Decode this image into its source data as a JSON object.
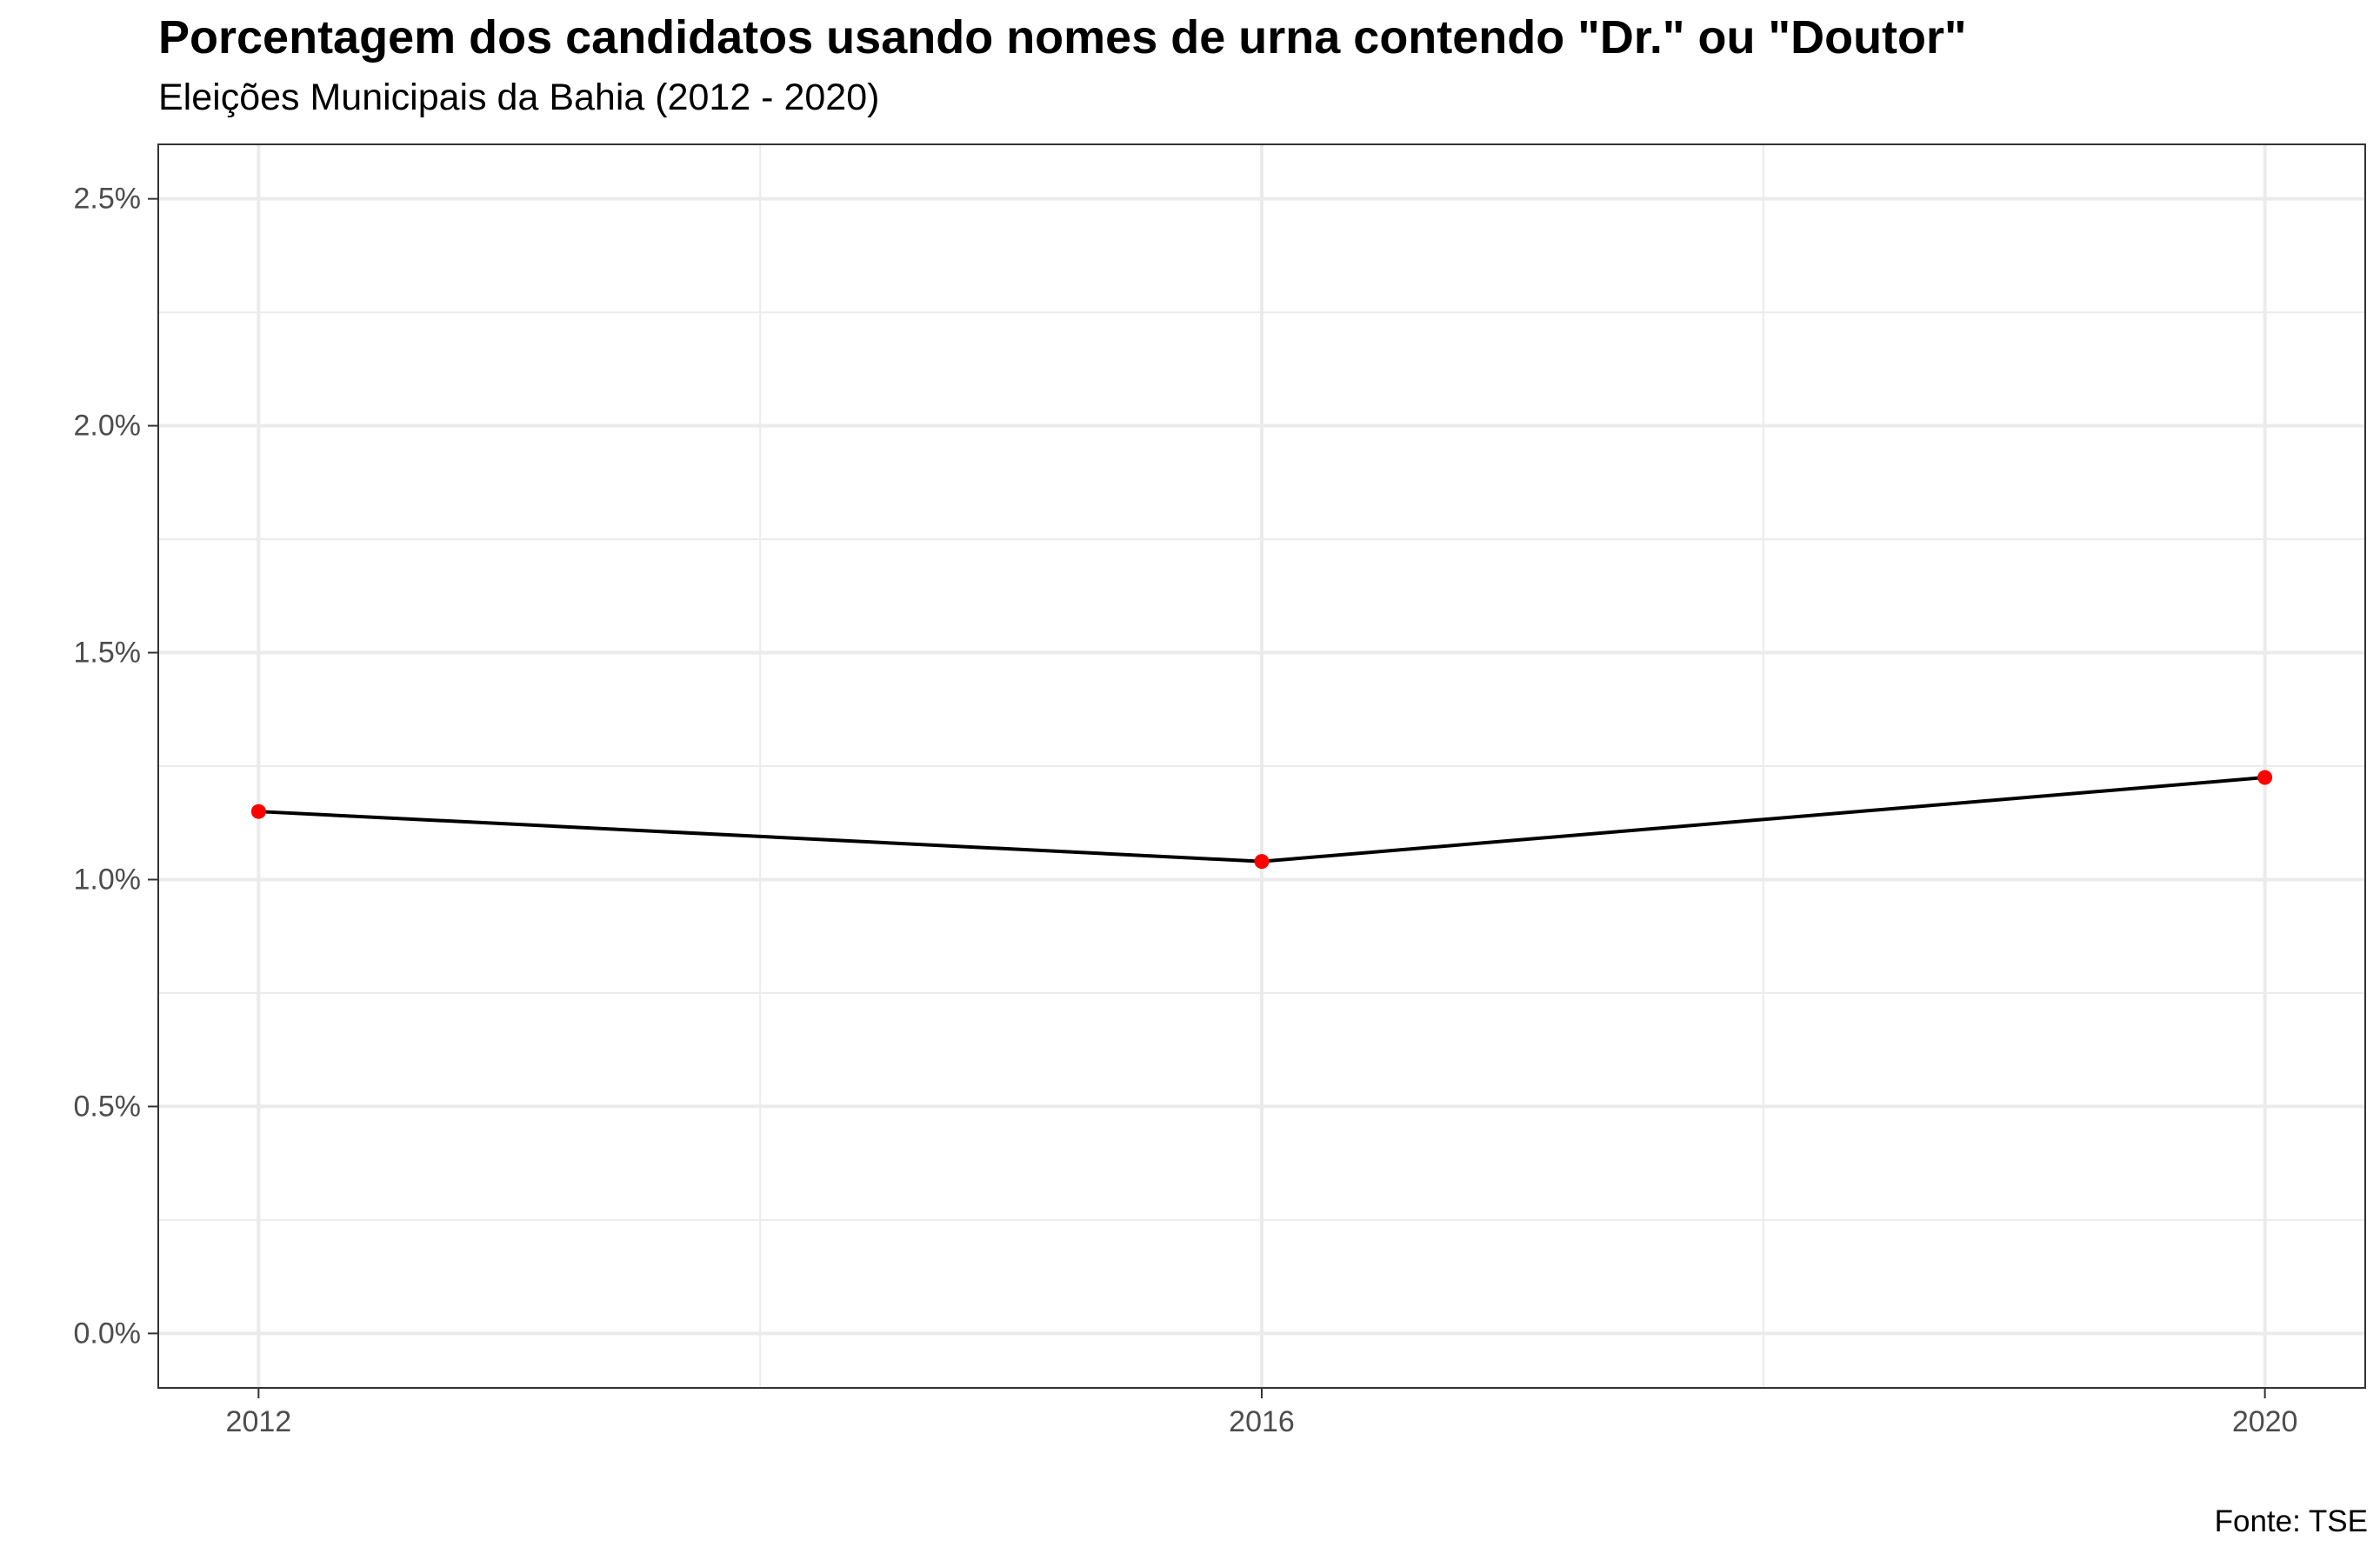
{
  "chart_data": {
    "type": "line",
    "title": "Porcentagem dos candidatos usando nomes de urna contendo \"Dr.\" ou \"Doutor\"",
    "subtitle": "Eleições Municipais da Bahia (2012 - 2020)",
    "caption": "Fonte: TSE",
    "xlabel": "",
    "ylabel": "",
    "x": [
      2012,
      2016,
      2020
    ],
    "series": [
      {
        "values": [
          1.15,
          1.04,
          1.225
        ]
      }
    ],
    "x_ticks": [
      "2012",
      "2016",
      "2020"
    ],
    "y_ticks": [
      "0.0%",
      "0.5%",
      "1.0%",
      "1.5%",
      "2.0%",
      "2.5%"
    ],
    "xlim": [
      2011.6,
      2020.4
    ],
    "ylim": [
      -0.12,
      2.62
    ],
    "grid": true,
    "legend": "none",
    "colors": {
      "line": "#000000",
      "point": "#ff0000",
      "grid": "#ebebeb",
      "panel_border": "#333333"
    }
  }
}
